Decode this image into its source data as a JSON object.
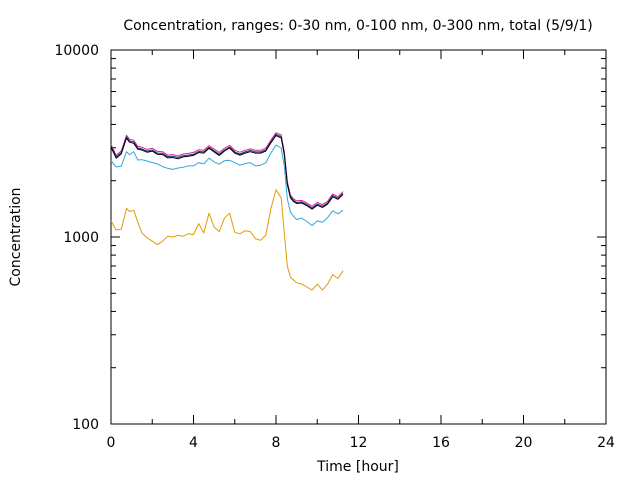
{
  "chart_data": {
    "type": "line",
    "title": "Concentration, ranges: 0-30 nm, 0-100 nm, 0-300 nm, total (5/9/1)",
    "xlabel": "Time [hour]",
    "ylabel": "Concentration",
    "xlim": [
      0,
      24
    ],
    "ylim": [
      100,
      10000
    ],
    "yscale": "log",
    "grid": false,
    "legend": "none",
    "xticks": [
      0,
      4,
      8,
      12,
      16,
      20,
      24
    ],
    "yticks": [
      100,
      1000,
      10000
    ],
    "x": [
      0.0,
      0.25,
      0.5,
      0.75,
      0.9,
      1.1,
      1.3,
      1.5,
      1.75,
      2.0,
      2.25,
      2.5,
      2.75,
      3.0,
      3.25,
      3.5,
      3.75,
      4.0,
      4.25,
      4.5,
      4.75,
      5.0,
      5.25,
      5.5,
      5.75,
      6.0,
      6.25,
      6.5,
      6.75,
      7.0,
      7.25,
      7.5,
      7.75,
      8.0,
      8.25,
      8.4,
      8.55,
      8.7,
      8.85,
      9.0,
      9.25,
      9.5,
      9.75,
      10.0,
      10.25,
      10.5,
      10.75,
      11.0,
      11.25
    ],
    "series": [
      {
        "color": "#e0218a",
        "values": [
          3130,
          2730,
          2890,
          3500,
          3330,
          3290,
          3050,
          3020,
          2940,
          2980,
          2870,
          2860,
          2740,
          2760,
          2710,
          2780,
          2800,
          2830,
          2930,
          2910,
          3080,
          2950,
          2830,
          2980,
          3090,
          2910,
          2840,
          2910,
          2960,
          2910,
          2910,
          2980,
          3290,
          3610,
          3510,
          2860,
          1980,
          1680,
          1600,
          1560,
          1570,
          1520,
          1460,
          1530,
          1490,
          1550,
          1700,
          1640,
          1750
        ]
      },
      {
        "color": "#1a3a8f",
        "values": [
          3070,
          2680,
          2830,
          3430,
          3260,
          3220,
          2990,
          2960,
          2880,
          2920,
          2810,
          2800,
          2690,
          2700,
          2660,
          2720,
          2740,
          2770,
          2870,
          2850,
          3020,
          2890,
          2770,
          2920,
          3030,
          2850,
          2780,
          2850,
          2900,
          2850,
          2850,
          2920,
          3220,
          3540,
          3440,
          2800,
          1940,
          1650,
          1570,
          1530,
          1540,
          1490,
          1430,
          1500,
          1460,
          1520,
          1670,
          1610,
          1710
        ]
      },
      {
        "color": "#000000",
        "values": [
          3020,
          2640,
          2790,
          3380,
          3210,
          3170,
          2950,
          2920,
          2840,
          2880,
          2770,
          2760,
          2650,
          2660,
          2620,
          2680,
          2700,
          2730,
          2830,
          2810,
          2980,
          2850,
          2730,
          2880,
          2990,
          2810,
          2740,
          2810,
          2860,
          2810,
          2810,
          2880,
          3180,
          3490,
          3390,
          2760,
          1910,
          1620,
          1550,
          1510,
          1520,
          1470,
          1410,
          1480,
          1440,
          1500,
          1640,
          1590,
          1690
        ]
      },
      {
        "color": "#30a7dc",
        "values": [
          2550,
          2370,
          2390,
          2860,
          2760,
          2860,
          2580,
          2590,
          2550,
          2500,
          2460,
          2380,
          2330,
          2300,
          2340,
          2360,
          2400,
          2400,
          2500,
          2460,
          2640,
          2520,
          2450,
          2560,
          2570,
          2500,
          2420,
          2470,
          2500,
          2400,
          2420,
          2490,
          2810,
          3100,
          2990,
          2400,
          1600,
          1360,
          1290,
          1240,
          1260,
          1210,
          1150,
          1220,
          1200,
          1270,
          1380,
          1330,
          1390
        ]
      },
      {
        "color": "#e39b00",
        "values": [
          1220,
          1090,
          1100,
          1420,
          1370,
          1390,
          1200,
          1050,
          990,
          950,
          910,
          950,
          1010,
          1000,
          1020,
          1010,
          1040,
          1030,
          1180,
          1050,
          1340,
          1130,
          1070,
          1260,
          1340,
          1060,
          1040,
          1080,
          1070,
          980,
          960,
          1020,
          1410,
          1790,
          1620,
          1050,
          700,
          610,
          590,
          570,
          560,
          540,
          520,
          560,
          520,
          560,
          630,
          600,
          660
        ]
      }
    ]
  }
}
